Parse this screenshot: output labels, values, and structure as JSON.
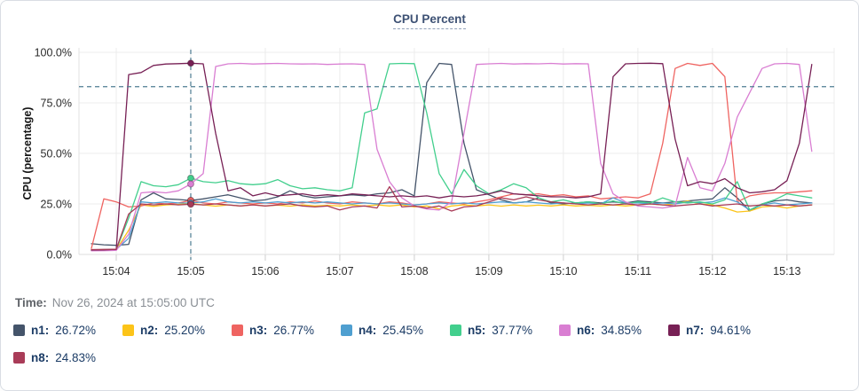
{
  "legend": {
    "time_label": "Time:",
    "time_value": "Nov 26, 2024 at 15:05:00 UTC"
  },
  "chart_data": {
    "type": "line",
    "title": "CPU Percent",
    "ylabel": "CPU (percentage)",
    "grid": true,
    "legend_position": "bottom",
    "y_domain": [
      0,
      100
    ],
    "y_ticks": [
      {
        "v": 0,
        "label": "0.0%"
      },
      {
        "v": 25,
        "label": "25.0%"
      },
      {
        "v": 50,
        "label": "50.0%"
      },
      {
        "v": 75,
        "label": "75.0%"
      },
      {
        "v": 100,
        "label": "100.0%"
      }
    ],
    "x_domain_seconds": [
      210,
      818
    ],
    "x_ticks": [
      {
        "t": 240,
        "label": "15:04"
      },
      {
        "t": 300,
        "label": "15:05"
      },
      {
        "t": 360,
        "label": "15:06"
      },
      {
        "t": 420,
        "label": "15:07"
      },
      {
        "t": 480,
        "label": "15:08"
      },
      {
        "t": 540,
        "label": "15:09"
      },
      {
        "t": 600,
        "label": "15:10"
      },
      {
        "t": 660,
        "label": "15:11"
      },
      {
        "t": 720,
        "label": "15:12"
      },
      {
        "t": 780,
        "label": "15:13"
      }
    ],
    "x0_seconds": 220,
    "dx_seconds": 10,
    "threshold_value": 83,
    "guide_color": "#4e7d92",
    "cursor_time_seconds": 300,
    "series": [
      {
        "name": "n1",
        "color": "#44546a",
        "cursor_value": "26.72%",
        "values": [
          5.3,
          4.8,
          4.5,
          5,
          27,
          30.5,
          27.5,
          27.2,
          26.72,
          27.5,
          28.5,
          29.5,
          28,
          26.5,
          27,
          28.5,
          31.5,
          29,
          28,
          28.5,
          29,
          29.5,
          29,
          30,
          30.5,
          32,
          29,
          85,
          94.5,
          94,
          55,
          32,
          29.5,
          27,
          25.5,
          26,
          28,
          25.5,
          25,
          25.5,
          26,
          25.5,
          26,
          25.5,
          26.5,
          26,
          25.5,
          26,
          26.5,
          27,
          27.5,
          33,
          28,
          21.5,
          25,
          26.5,
          27,
          26,
          25.5
        ]
      },
      {
        "name": "n2",
        "color": "#fcc419",
        "cursor_value": "25.20%",
        "values": [
          2,
          2.2,
          2.3,
          12,
          24.5,
          23.8,
          24.5,
          24.8,
          25.2,
          24.5,
          23.9,
          24.5,
          24,
          24.6,
          24,
          24.4,
          23.9,
          24.5,
          24,
          24.3,
          24,
          24.5,
          23.9,
          24.5,
          24,
          24.5,
          23.5,
          24,
          22.5,
          24,
          24.5,
          24,
          24.5,
          23.9,
          24.5,
          24,
          24.4,
          24,
          24.5,
          24,
          24.3,
          24,
          24.5,
          24,
          24.5,
          25,
          24.5,
          25,
          26.5,
          25,
          24.5,
          23,
          21,
          21.5,
          23.5,
          24,
          23,
          24,
          24.5
        ]
      },
      {
        "name": "n3",
        "color": "#ef6461",
        "cursor_value": "26.77%",
        "values": [
          3,
          27.5,
          26,
          23.5,
          24,
          25.5,
          25,
          25.5,
          26.77,
          25.5,
          25,
          26,
          25.5,
          25,
          25.5,
          25,
          26,
          25.5,
          26.5,
          25.5,
          25,
          26,
          25.5,
          25,
          26,
          25.5,
          24.5,
          25,
          26,
          25.5,
          25,
          26,
          27,
          28.5,
          30,
          29.5,
          30,
          29,
          29.5,
          28.5,
          29,
          27.5,
          28,
          28.5,
          28,
          30,
          55,
          92,
          94.5,
          93.5,
          94.5,
          88,
          26,
          29,
          30,
          30.5,
          30.5,
          31,
          31.5
        ]
      },
      {
        "name": "n4",
        "color": "#4f9fd0",
        "cursor_value": "25.45%",
        "values": [
          2.2,
          2.4,
          2.5,
          8,
          26,
          25.5,
          26,
          25.5,
          25.45,
          26,
          27.5,
          26,
          25.5,
          26,
          25.5,
          26,
          25.5,
          26,
          25.5,
          26,
          25.5,
          25,
          25.5,
          25,
          25.5,
          25,
          24.5,
          25,
          25.5,
          25,
          25.5,
          25,
          25.5,
          26,
          25.5,
          26,
          25.5,
          25,
          25.5,
          25,
          25.5,
          25,
          28,
          25.5,
          25.5,
          25,
          25.5,
          25,
          26,
          25.5,
          26,
          28,
          26,
          22,
          24.5,
          25.5,
          24.5,
          25,
          25.5
        ]
      },
      {
        "name": "n5",
        "color": "#42cf8d",
        "cursor_value": "37.77%",
        "values": [
          2,
          2.2,
          2.3,
          18,
          36,
          34,
          33.5,
          34.5,
          37.77,
          36,
          35.5,
          36.5,
          35,
          34.5,
          35,
          37,
          34,
          32.5,
          33,
          32,
          31.5,
          33,
          70,
          72,
          94.3,
          94.5,
          94.4,
          70,
          40,
          30,
          42,
          34,
          30,
          32,
          35,
          33,
          28,
          26,
          27,
          25.5,
          26,
          25,
          26.5,
          25,
          26,
          25.5,
          28,
          26,
          25.5,
          26,
          25,
          27,
          36,
          22,
          25,
          27,
          30,
          29,
          28
        ]
      },
      {
        "name": "n6",
        "color": "#d97ed2",
        "cursor_value": "34.85%",
        "values": [
          1.8,
          1.9,
          2,
          10,
          30.5,
          31,
          30.5,
          31.5,
          34.85,
          40,
          93,
          94.3,
          94.5,
          94.2,
          94.4,
          94.5,
          94.3,
          94.2,
          94.3,
          94,
          94.2,
          94.3,
          94,
          52,
          36,
          28,
          24,
          22.5,
          22,
          26,
          60,
          94,
          94.3,
          94.5,
          94.2,
          94.4,
          94.3,
          94.5,
          94.2,
          94.4,
          94.3,
          45,
          30,
          26,
          24,
          23.5,
          23,
          24,
          48,
          33,
          31.5,
          45,
          68,
          80,
          92,
          94.3,
          94.5,
          94,
          51
        ]
      },
      {
        "name": "n7",
        "color": "#772055",
        "cursor_value": "94.61%",
        "values": [
          2.2,
          2.3,
          2.5,
          89,
          90,
          93.5,
          94.2,
          94.4,
          94.61,
          94.3,
          60,
          31.5,
          33,
          29,
          30.5,
          29,
          29.5,
          30,
          29,
          29.5,
          29,
          30,
          29.5,
          29,
          28.5,
          29,
          28.5,
          29,
          28,
          29,
          28.5,
          29,
          30,
          31.5,
          30,
          29.5,
          29,
          28.5,
          28.5,
          28,
          28.5,
          30,
          88,
          94.3,
          94.5,
          94.6,
          94.4,
          57,
          34,
          36,
          35,
          37.5,
          33,
          30.5,
          31,
          32,
          36.5,
          55,
          94
        ]
      },
      {
        "name": "n8",
        "color": "#a93c58",
        "cursor_value": "24.83%",
        "values": [
          2.4,
          2.5,
          2.6,
          20,
          25,
          24.5,
          25,
          24.5,
          24.83,
          24.5,
          25,
          24.5,
          24,
          24.5,
          24,
          24.5,
          25,
          24,
          23.5,
          24,
          22,
          23.5,
          24,
          23,
          33.5,
          23.5,
          24,
          23,
          24,
          21.5,
          23.5,
          24,
          26,
          28,
          27,
          28.5,
          27,
          26,
          25.5,
          25,
          24.5,
          25,
          24.5,
          25,
          24.5,
          25,
          24.5,
          24,
          24.5,
          25,
          24,
          24.5,
          25,
          24,
          24.5,
          24,
          24.5,
          24,
          24.5
        ]
      }
    ]
  }
}
